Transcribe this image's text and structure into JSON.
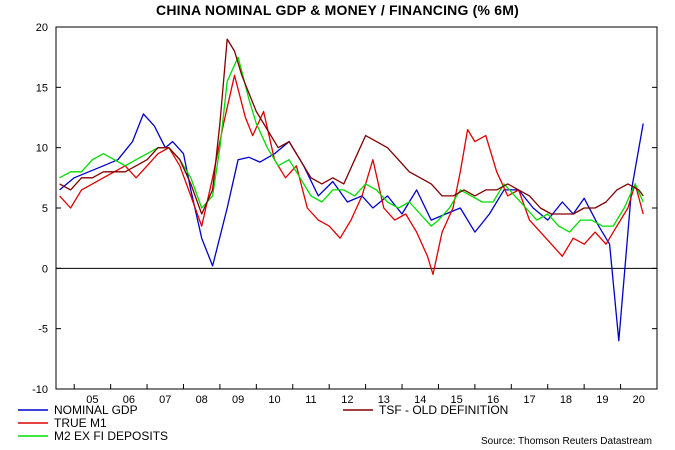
{
  "chart_data": {
    "type": "line",
    "title": "CHINA NOMINAL GDP & MONEY / FINANCING (% 6M)",
    "xlabel": "",
    "ylabel": "",
    "ylim": [
      -10,
      20
    ],
    "y_ticks": [
      -10,
      -5,
      0,
      5,
      10,
      15,
      20
    ],
    "xlim": [
      2004.5,
      2021.0
    ],
    "x_tick_labels": [
      "05",
      "06",
      "07",
      "08",
      "09",
      "10",
      "11",
      "12",
      "13",
      "14",
      "15",
      "16",
      "17",
      "18",
      "19",
      "20"
    ],
    "zero_line": true,
    "grid": false,
    "legend_position": "bottom",
    "source": "Source: Thomson Reuters Datastream",
    "series": [
      {
        "name": "NOMINAL GDP",
        "color": "#0000cc",
        "x": [
          2004.6,
          2005.0,
          2005.4,
          2005.8,
          2006.2,
          2006.6,
          2006.9,
          2007.2,
          2007.5,
          2007.7,
          2008.0,
          2008.2,
          2008.5,
          2008.8,
          2009.2,
          2009.5,
          2009.8,
          2010.1,
          2010.5,
          2010.9,
          2011.3,
          2011.7,
          2012.1,
          2012.5,
          2012.9,
          2013.2,
          2013.6,
          2014.0,
          2014.4,
          2014.8,
          2015.2,
          2015.6,
          2016.0,
          2016.4,
          2016.8,
          2017.2,
          2017.6,
          2018.0,
          2018.4,
          2018.7,
          2019.0,
          2019.4,
          2019.7,
          2019.95,
          2020.3,
          2020.62
        ],
        "values": [
          6.5,
          7.5,
          8.0,
          8.5,
          9.0,
          10.5,
          12.8,
          11.8,
          10.0,
          10.5,
          9.5,
          6.5,
          2.5,
          0.2,
          5.0,
          9.0,
          9.2,
          8.8,
          9.5,
          10.5,
          8.5,
          6.0,
          7.2,
          5.5,
          6.0,
          5.0,
          6.0,
          4.5,
          6.5,
          4.0,
          4.5,
          5.0,
          3.0,
          4.5,
          6.5,
          6.5,
          5.0,
          4.0,
          5.5,
          4.5,
          5.8,
          3.5,
          2.0,
          -6.0,
          6.5,
          12.0
        ]
      },
      {
        "name": "TRUE M1",
        "color": "#dd0000",
        "x": [
          2004.6,
          2004.9,
          2005.2,
          2005.5,
          2005.8,
          2006.1,
          2006.4,
          2006.7,
          2007.0,
          2007.3,
          2007.6,
          2007.9,
          2008.2,
          2008.5,
          2008.8,
          2009.1,
          2009.4,
          2009.7,
          2009.9,
          2010.2,
          2010.5,
          2010.8,
          2011.1,
          2011.4,
          2011.7,
          2012.0,
          2012.3,
          2012.6,
          2012.9,
          2013.2,
          2013.5,
          2013.8,
          2014.1,
          2014.4,
          2014.7,
          2014.85,
          2015.1,
          2015.4,
          2015.6,
          2015.8,
          2016.0,
          2016.3,
          2016.6,
          2016.9,
          2017.2,
          2017.5,
          2017.8,
          2018.1,
          2018.4,
          2018.7,
          2019.0,
          2019.3,
          2019.6,
          2019.9,
          2020.2,
          2020.4,
          2020.62
        ],
        "values": [
          6.0,
          5.0,
          6.5,
          7.0,
          7.5,
          8.0,
          8.5,
          7.5,
          8.5,
          9.5,
          10.0,
          8.5,
          6.0,
          3.5,
          7.5,
          12.0,
          16.0,
          12.5,
          11.0,
          13.0,
          9.0,
          7.5,
          8.5,
          5.0,
          4.0,
          3.5,
          2.5,
          4.0,
          6.0,
          9.0,
          5.0,
          4.0,
          4.5,
          3.0,
          1.0,
          -0.5,
          3.0,
          5.0,
          8.0,
          11.5,
          10.5,
          11.0,
          8.0,
          6.0,
          6.5,
          4.0,
          3.0,
          2.0,
          1.0,
          2.5,
          2.0,
          3.0,
          2.0,
          3.5,
          5.0,
          7.0,
          4.5
        ]
      },
      {
        "name": "M2 EX FI DEPOSITS",
        "color": "#00dd00",
        "x": [
          2004.6,
          2004.9,
          2005.2,
          2005.5,
          2005.8,
          2006.1,
          2006.4,
          2006.7,
          2007.0,
          2007.3,
          2007.6,
          2007.9,
          2008.2,
          2008.5,
          2008.8,
          2009.0,
          2009.2,
          2009.5,
          2009.8,
          2010.0,
          2010.3,
          2010.6,
          2010.9,
          2011.2,
          2011.5,
          2011.8,
          2012.1,
          2012.4,
          2012.7,
          2013.0,
          2013.3,
          2013.6,
          2013.9,
          2014.2,
          2014.5,
          2014.8,
          2015.0,
          2015.3,
          2015.6,
          2015.9,
          2016.2,
          2016.5,
          2016.8,
          2017.1,
          2017.4,
          2017.7,
          2018.0,
          2018.3,
          2018.6,
          2018.9,
          2019.2,
          2019.5,
          2019.8,
          2020.1,
          2020.4,
          2020.62
        ],
        "values": [
          7.5,
          8.0,
          8.0,
          9.0,
          9.5,
          9.0,
          8.5,
          9.0,
          9.5,
          10.0,
          10.0,
          9.0,
          7.5,
          5.0,
          6.0,
          10.0,
          15.5,
          17.5,
          14.0,
          12.0,
          10.0,
          8.5,
          9.0,
          7.5,
          6.0,
          5.5,
          6.5,
          6.5,
          6.0,
          7.0,
          6.5,
          5.5,
          5.0,
          5.5,
          4.5,
          3.5,
          4.0,
          5.0,
          6.5,
          6.0,
          5.5,
          5.5,
          7.0,
          6.0,
          5.0,
          4.0,
          4.5,
          3.5,
          3.0,
          4.0,
          4.0,
          3.5,
          3.5,
          5.0,
          7.0,
          5.5
        ]
      },
      {
        "name": "TSF - OLD DEFINITION",
        "color": "#800000",
        "x": [
          2004.6,
          2004.9,
          2005.2,
          2005.5,
          2005.8,
          2006.1,
          2006.4,
          2006.7,
          2007.0,
          2007.3,
          2007.6,
          2007.9,
          2008.2,
          2008.5,
          2008.8,
          2009.0,
          2009.2,
          2009.4,
          2009.6,
          2009.8,
          2010.0,
          2010.3,
          2010.6,
          2010.9,
          2011.2,
          2011.5,
          2011.8,
          2012.1,
          2012.4,
          2012.7,
          2013.0,
          2013.3,
          2013.6,
          2013.9,
          2014.2,
          2014.5,
          2014.8,
          2015.1,
          2015.4,
          2015.7,
          2016.0,
          2016.3,
          2016.6,
          2016.9,
          2017.2,
          2017.5,
          2017.8,
          2018.1,
          2018.4,
          2018.7,
          2019.0,
          2019.3,
          2019.6,
          2019.9,
          2020.2,
          2020.5,
          2020.62
        ],
        "values": [
          7.0,
          6.5,
          7.5,
          7.5,
          8.0,
          8.0,
          8.0,
          8.5,
          9.0,
          10.0,
          10.0,
          9.0,
          7.0,
          4.5,
          6.5,
          12.0,
          19.0,
          18.0,
          16.0,
          14.5,
          13.0,
          11.5,
          10.0,
          10.5,
          9.0,
          7.5,
          7.0,
          7.5,
          7.0,
          9.0,
          11.0,
          10.5,
          10.0,
          9.0,
          8.0,
          7.5,
          7.0,
          6.0,
          6.0,
          6.5,
          6.0,
          6.5,
          6.5,
          7.0,
          6.5,
          6.0,
          5.0,
          4.5,
          4.5,
          4.5,
          5.0,
          5.0,
          5.5,
          6.5,
          7.0,
          6.5,
          6.0
        ]
      }
    ]
  }
}
